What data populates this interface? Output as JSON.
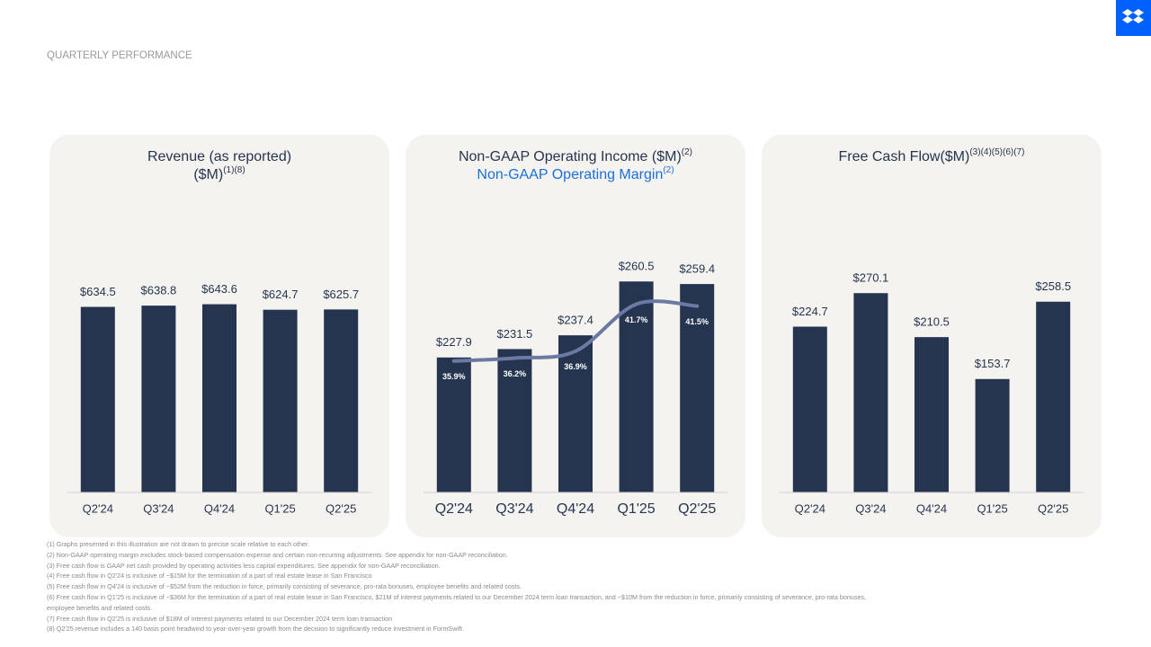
{
  "header": {
    "title": "QUARTERLY PERFORMANCE"
  },
  "chart_data": [
    {
      "type": "bar",
      "title": [
        "Revenue (as reported)",
        "($M)"
      ],
      "title_sup": "(1)(8)",
      "categories": [
        "Q2'24",
        "Q3'24",
        "Q4'24",
        "Q1'25",
        "Q2'25"
      ],
      "series": [
        {
          "color": "#253550",
          "values": [
            634.5,
            638.8,
            643.6,
            624.7,
            625.7
          ],
          "value_labels": [
            "$634.5",
            "$638.8",
            "$643.6",
            "$624.7",
            "$625.7"
          ]
        }
      ],
      "ylim": [
        0,
        1100
      ]
    },
    {
      "type": "bar",
      "title": [
        "Non-GAAP Operating Income ($M)"
      ],
      "title_sup": "(2)",
      "subtitle": "Non-GAAP Operating Margin",
      "subtitle_sup": "(2)",
      "categories": [
        "Q2'24",
        "Q3'24",
        "Q4'24",
        "Q1'25",
        "Q2'25"
      ],
      "series": [
        {
          "color": "#253550",
          "values": [
            227.9,
            231.5,
            237.4,
            260.5,
            259.4
          ],
          "value_labels": [
            "$227.9",
            "$231.5",
            "$237.4",
            "$260.5",
            "$259.4"
          ]
        },
        {
          "type": "line",
          "axis": "y2",
          "color": "#6b7aa3",
          "values": [
            35.9,
            36.2,
            36.9,
            41.7,
            41.5
          ],
          "value_labels": [
            "35.9%",
            "36.2%",
            "36.9%",
            "41.7%",
            "41.5%"
          ]
        }
      ],
      "ylim": [
        170,
        308
      ],
      "y2lim": [
        22.5,
        55.3
      ]
    },
    {
      "type": "bar",
      "title": [
        "Free Cash Flow($M)"
      ],
      "title_sup": "(3)(4)(5)(6)(7)",
      "categories": [
        "Q2'24",
        "Q3'24",
        "Q4'24",
        "Q1'25",
        "Q2'25"
      ],
      "series": [
        {
          "color": "#253550",
          "values": [
            224.7,
            270.1,
            210.5,
            153.7,
            258.5
          ],
          "value_labels": [
            "$224.7",
            "$270.1",
            "$210.5",
            "$153.7",
            "$258.5"
          ]
        }
      ],
      "ylim": [
        0,
        436
      ]
    }
  ],
  "footnotes": [
    "(1) Graphs presented in this illustration are not drawn to precise scale relative to each other.",
    "(2) Non-GAAP operating margin excludes stock-based compensation expense and certain non-recurring adjustments. See appendix for non-GAAP reconciliation.",
    "(3) Free cash flow is GAAP net cash provided by operating activities less capital expenditures. See appendix for non-GAAP reconciliation.",
    "(4) Free cash flow in Q2'24 is inclusive of ~$15M for the termination of a part of real estate lease in San Francisco",
    "(5) Free cash flow in Q4'24 is inclusive of ~$52M from the reduction in force, primarily consisting of severance, pro-rata bonuses, employee benefits and related costs.",
    "(6) Free cash flow in Q1'25 is inclusive of ~$36M for the termination of a part of real estate lease in San Francisco, $21M of interest payments related to our December 2024 term loan transaction, and ~$10M from the reduction in force, primarily consisting of severance, pro-rata bonuses, employee benefits and related costs.",
    "(7) Free cash flow in Q2'25 is inclusive of $18M of interest payments related to our December 2024 term loan transaction",
    "(8) Q2'25 revenue includes a 140 basis point headwind to year-over-year growth from the decision to significantly reduce investment in FormSwift."
  ]
}
